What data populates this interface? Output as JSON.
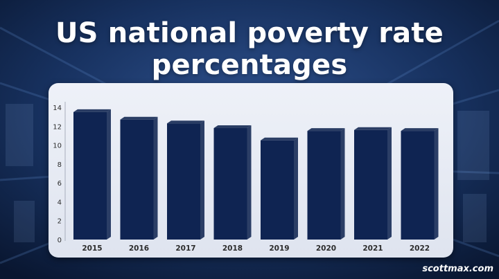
{
  "title_line1": "US national poverty rate",
  "title_line2": "percentages",
  "credit": "scottmax.com",
  "colors": {
    "bar_front": "#0f2452",
    "bar_side": "#2b3e66",
    "bar_top": "#2a3d64",
    "panel": "#e8ecf5",
    "axis_text": "#2c2c2c"
  },
  "chart_data": {
    "type": "bar",
    "title": "US national poverty rate percentages",
    "categories": [
      "2015",
      "2016",
      "2017",
      "2018",
      "2019",
      "2020",
      "2021",
      "2022"
    ],
    "values": [
      13.5,
      12.7,
      12.3,
      11.8,
      10.5,
      11.5,
      11.6,
      11.5
    ],
    "xlabel": "",
    "ylabel": "",
    "ylim": [
      0,
      14
    ],
    "yticks": [
      "0",
      "2",
      "4",
      "6",
      "8",
      "10",
      "12",
      "14"
    ],
    "grid": false,
    "legend": "none"
  }
}
